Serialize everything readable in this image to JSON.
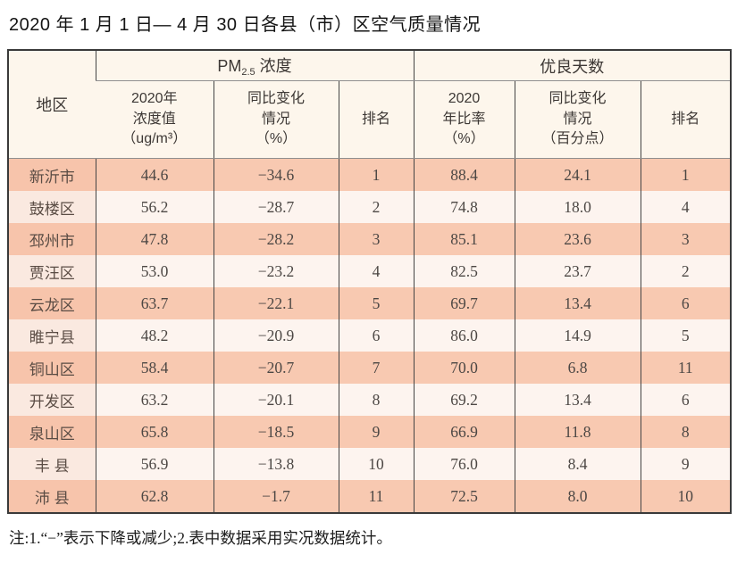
{
  "title": "2020 年 1 月 1 日— 4 月 30 日各县（市）区空气质量情况",
  "note": "注:1.“−”表示下降或减少;2.表中数据采用实况数据统计。",
  "colors": {
    "header_bg": "#fdf6ec",
    "row_salmon": "#f8c9b1",
    "row_light": "#fdf4ef",
    "row_light_first_col": "#fae9e0",
    "outer_border": "#3a3a3a",
    "inner_vertical_border": "#454545",
    "header_rule": "#8f8f8f",
    "data_text": "#4c4744"
  },
  "table": {
    "region_header": "地区",
    "group_pm": {
      "prefix": "PM",
      "sub": "2.5",
      "suffix": " 浓度"
    },
    "group_days": "优良天数",
    "sub_headers": {
      "pm_value": "2020年\n浓度值\n（ug/m³）",
      "pm_change": "同比变化\n情况\n（%）",
      "pm_rank": "排名",
      "days_rate": "2020\n年比率\n（%）",
      "days_change": "同比变化\n情况\n（百分点）",
      "days_rank": "排名"
    },
    "rows": [
      {
        "region": "新沂市",
        "pm_value": "44.6",
        "pm_change": "−34.6",
        "pm_rank": "1",
        "days_rate": "88.4",
        "days_change": "24.1",
        "days_rank": "1"
      },
      {
        "region": "鼓楼区",
        "pm_value": "56.2",
        "pm_change": "−28.7",
        "pm_rank": "2",
        "days_rate": "74.8",
        "days_change": "18.0",
        "days_rank": "4"
      },
      {
        "region": "邳州市",
        "pm_value": "47.8",
        "pm_change": "−28.2",
        "pm_rank": "3",
        "days_rate": "85.1",
        "days_change": "23.6",
        "days_rank": "3"
      },
      {
        "region": "贾汪区",
        "pm_value": "53.0",
        "pm_change": "−23.2",
        "pm_rank": "4",
        "days_rate": "82.5",
        "days_change": "23.7",
        "days_rank": "2"
      },
      {
        "region": "云龙区",
        "pm_value": "63.7",
        "pm_change": "−22.1",
        "pm_rank": "5",
        "days_rate": "69.7",
        "days_change": "13.4",
        "days_rank": "6"
      },
      {
        "region": "睢宁县",
        "pm_value": "48.2",
        "pm_change": "−20.9",
        "pm_rank": "6",
        "days_rate": "86.0",
        "days_change": "14.9",
        "days_rank": "5"
      },
      {
        "region": "铜山区",
        "pm_value": "58.4",
        "pm_change": "−20.7",
        "pm_rank": "7",
        "days_rate": "70.0",
        "days_change": "6.8",
        "days_rank": "11"
      },
      {
        "region": "开发区",
        "pm_value": "63.2",
        "pm_change": "−20.1",
        "pm_rank": "8",
        "days_rate": "69.2",
        "days_change": "13.4",
        "days_rank": "6"
      },
      {
        "region": "泉山区",
        "pm_value": "65.8",
        "pm_change": "−18.5",
        "pm_rank": "9",
        "days_rate": "66.9",
        "days_change": "11.8",
        "days_rank": "8"
      },
      {
        "region": "丰 县",
        "pm_value": "56.9",
        "pm_change": "−13.8",
        "pm_rank": "10",
        "days_rate": "76.0",
        "days_change": "8.4",
        "days_rank": "9"
      },
      {
        "region": "沛 县",
        "pm_value": "62.8",
        "pm_change": "−1.7",
        "pm_rank": "11",
        "days_rate": "72.5",
        "days_change": "8.0",
        "days_rank": "10"
      }
    ]
  }
}
